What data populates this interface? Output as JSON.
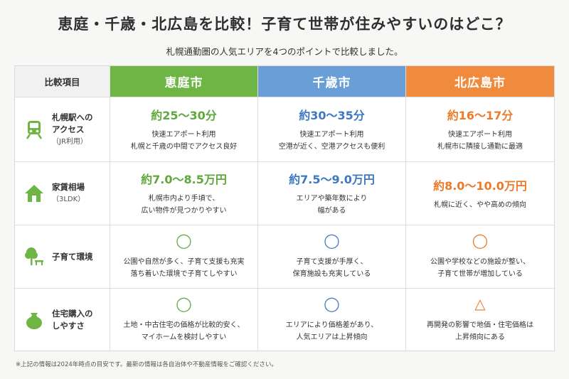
{
  "title": "恵庭・千歳・北広島を比較！子育て世帯が住みやすいのはどこ？",
  "subtitle": "札幌通勤圏の人気エリアを4つのポイントで比較しました。",
  "header": {
    "label": "比較項目",
    "cities": [
      "恵庭市",
      "千歳市",
      "北広島市"
    ]
  },
  "rows": {
    "access": {
      "label_line1": "札幌駅への",
      "label_line2": "アクセス",
      "note": "（JR利用）",
      "icon": "train-icon",
      "eniwa": {
        "value": "約25～30分",
        "desc1": "快速エアポート利用",
        "desc2": "札幌と千歳の中間でアクセス良好"
      },
      "chitose": {
        "value": "約30～35分",
        "desc1": "快速エアポート利用",
        "desc2": "空港が近く、空港アクセスも便利"
      },
      "kitahiroshima": {
        "value": "約16～17分",
        "desc1": "快速エアポート利用",
        "desc2": "札幌市に隣接し通勤に最適"
      }
    },
    "rent": {
      "label_line1": "家賃相場",
      "note": "（3LDK）",
      "icon": "house-icon",
      "eniwa": {
        "value": "約7.0～8.5万円",
        "desc1": "札幌市内より手頃で、",
        "desc2": "広い物件が見つかりやすい"
      },
      "chitose": {
        "value": "約7.5～9.0万円",
        "desc1": "エリアや築年数により",
        "desc2": "幅がある"
      },
      "kitahiroshima": {
        "value": "約8.0～10.0万円",
        "desc1": "札幌に近く、やや高めの傾向"
      }
    },
    "childcare": {
      "label_line1": "子育て環境",
      "icon": "park-tree-bench-icon",
      "eniwa": {
        "mark": "◯",
        "desc1": "公園や自然が多く、子育て支援も充実",
        "desc2": "落ち着いた環境で子育てしやすい"
      },
      "chitose": {
        "mark": "◯",
        "desc1": "子育て支援が手厚く、",
        "desc2": "保育施設も充実している"
      },
      "kitahiroshima": {
        "mark": "◯",
        "desc1": "公園や学校などの施設が整い、",
        "desc2": "子育て世帯が増加している"
      }
    },
    "purchase": {
      "label_line1": "住宅購入の",
      "label_line2": "しやすさ",
      "icon": "money-bag-icon",
      "eniwa": {
        "mark": "◯",
        "desc1": "土地・中古住宅の価格が比較的安く、",
        "desc2": "マイホームを検討しやすい"
      },
      "chitose": {
        "mark": "◯",
        "desc1": "エリアにより価格差があり、",
        "desc2": "人気エリアは上昇傾向"
      },
      "kitahiroshima": {
        "mark": "△",
        "desc1": "再開発の影響で地価・住宅価格は",
        "desc2": "上昇傾向にある"
      }
    }
  },
  "footnote": "※上記の情報は2024年時点の目安です。最新の情報は各自治体や不動産情報をご確認ください。",
  "colors": {
    "green": "#6fb545",
    "blue": "#6a9ed6",
    "orange": "#f08a3c"
  }
}
